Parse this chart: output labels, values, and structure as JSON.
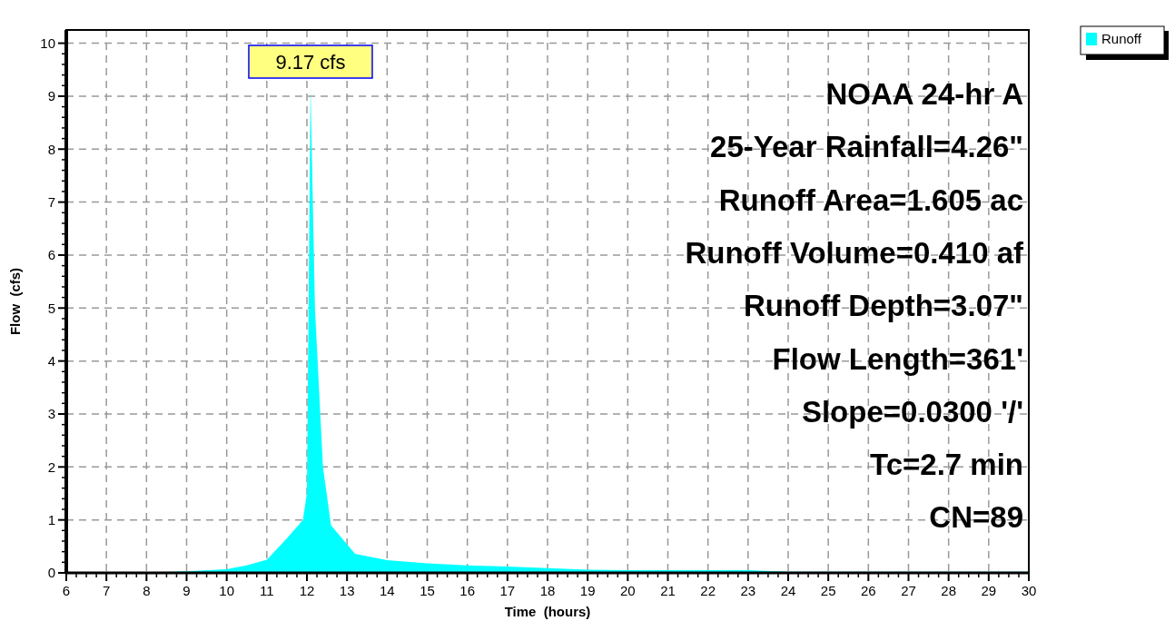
{
  "chart_data": {
    "type": "area",
    "xlabel": "Time  (hours)",
    "ylabel": "Flow  (cfs)",
    "xlim": [
      6,
      30
    ],
    "ylim": [
      0,
      10.25
    ],
    "xticks": [
      6,
      7,
      8,
      9,
      10,
      11,
      12,
      13,
      14,
      15,
      16,
      17,
      18,
      19,
      20,
      21,
      22,
      23,
      24,
      25,
      26,
      27,
      28,
      29,
      30
    ],
    "yticks": [
      0,
      1,
      2,
      3,
      4,
      5,
      6,
      7,
      8,
      9,
      10
    ],
    "grid": true,
    "legend": "top right",
    "series": [
      {
        "name": "Runoff",
        "color": "#00ffff",
        "x": [
          6,
          7,
          8,
          9,
          10,
          10.5,
          11,
          11.5,
          11.9,
          12,
          12.09,
          12.2,
          12.4,
          12.6,
          13.2,
          14,
          15,
          16,
          17,
          18,
          19,
          20,
          23,
          24,
          30
        ],
        "values": [
          0,
          0,
          0.01,
          0.03,
          0.07,
          0.14,
          0.25,
          0.65,
          1,
          1.5,
          9.17,
          5,
          2,
          0.9,
          0.36,
          0.24,
          0.18,
          0.14,
          0.12,
          0.09,
          0.06,
          0.05,
          0.05,
          0.02,
          0.02
        ]
      }
    ],
    "annotations": [
      {
        "text": "9.17 cfs",
        "x": 12.09,
        "y": 9.17
      },
      "NOAA 24-hr A",
      "25-Year Rainfall=4.26\"",
      "Runoff Area=1.605 ac",
      "Runoff Volume=0.410 af",
      "Runoff Depth=3.07\"",
      "Flow Length=361'",
      "Slope=0.0300 '/'",
      "Tc=2.7 min",
      "CN=89"
    ]
  }
}
